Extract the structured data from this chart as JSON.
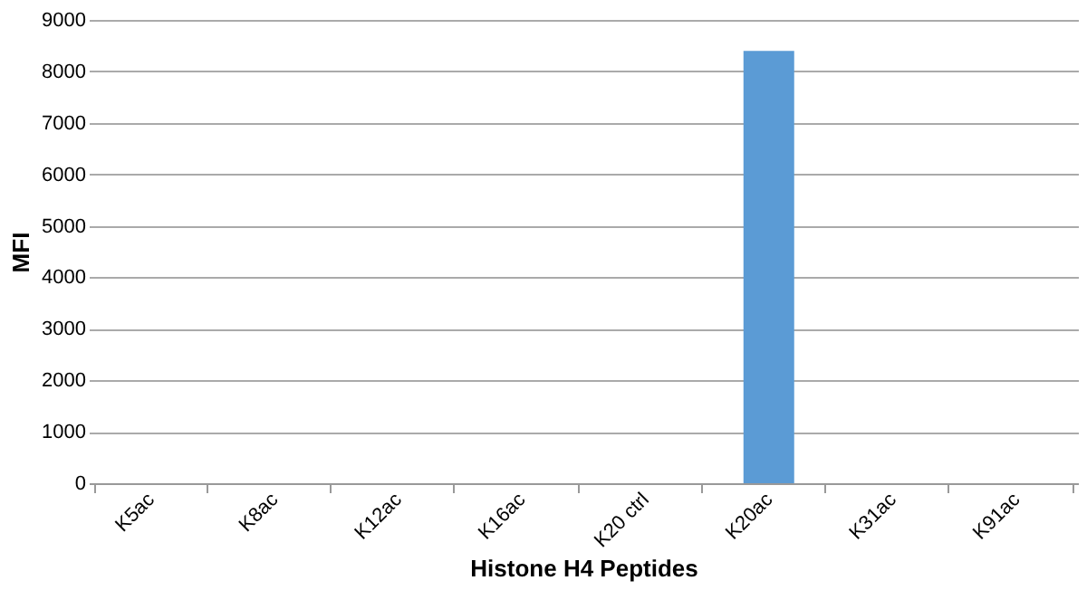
{
  "chart_data": {
    "type": "bar",
    "xlabel": "Histone H4 Peptides",
    "ylabel": "MFI",
    "categories": [
      "K5ac",
      "K8ac",
      "K12ac",
      "K16ac",
      "K20 ctrl",
      "K20ac",
      "K31ac",
      "K91ac"
    ],
    "values": [
      0,
      0,
      0,
      0,
      0,
      8400,
      0,
      0
    ],
    "color": "#5b9bd5",
    "ylim": [
      0,
      9000
    ],
    "yticks": [
      0,
      1000,
      2000,
      3000,
      4000,
      5000,
      6000,
      7000,
      8000,
      9000
    ],
    "grid": "y"
  }
}
